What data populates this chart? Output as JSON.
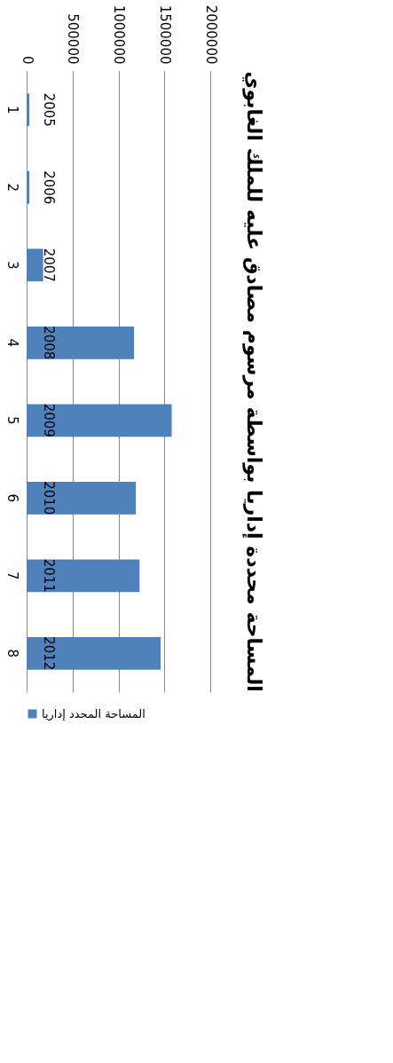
{
  "chart_data": {
    "type": "bar",
    "orientation": "horizontal",
    "title": "المساحة محددة إداريا بواسطة مرسوم مصادق عليه للملك الغابوي",
    "categories": [
      "1",
      "2",
      "3",
      "4",
      "5",
      "6",
      "7",
      "8"
    ],
    "series": [
      {
        "name": "المساحة المحدد إداريا",
        "color": "#4f81bd",
        "values": [
          30000,
          30000,
          180000,
          1170000,
          1580000,
          1190000,
          1230000,
          1460000
        ]
      }
    ],
    "xlim": [
      0,
      2000000
    ],
    "xticks": [
      0,
      500000,
      1000000,
      1500000,
      2000000
    ],
    "grid": "x",
    "legend": "bottom",
    "annotations": [
      "2005",
      "2006",
      "2007",
      "2008",
      "2009",
      "2010",
      "2011",
      "2012"
    ]
  }
}
